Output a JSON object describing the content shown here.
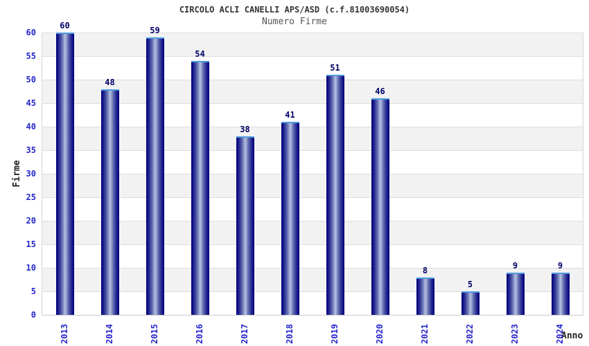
{
  "chart_data": {
    "type": "bar",
    "title": "CIRCOLO ACLI CANELLI APS/ASD (c.f.81003690054)",
    "subtitle": "Numero Firme",
    "xlabel": "Anno",
    "ylabel": "Firme",
    "categories": [
      "2013",
      "2014",
      "2015",
      "2016",
      "2017",
      "2018",
      "2019",
      "2020",
      "2021",
      "2022",
      "2023",
      "2024"
    ],
    "values": [
      60,
      48,
      59,
      54,
      38,
      41,
      51,
      46,
      8,
      5,
      9,
      9
    ],
    "ylim": [
      0,
      60
    ],
    "ytick_step": 5,
    "yticks": [
      0,
      5,
      10,
      15,
      20,
      25,
      30,
      35,
      40,
      45,
      50,
      55,
      60
    ],
    "grid": true,
    "legend": "none",
    "colors": {
      "bar_edge": "#000078",
      "bar_center": "#b9c2e2",
      "bar_top_border": "#4f9ae0",
      "tick_label": "#2525cc",
      "value_label": "#000066",
      "title": "#333333",
      "subtitle": "#555555",
      "axis_name": "#222222",
      "gridline": "#dddddd",
      "band_gray": "#f2f2f2",
      "band_white": "#ffffff",
      "background": "#ffffff"
    }
  }
}
